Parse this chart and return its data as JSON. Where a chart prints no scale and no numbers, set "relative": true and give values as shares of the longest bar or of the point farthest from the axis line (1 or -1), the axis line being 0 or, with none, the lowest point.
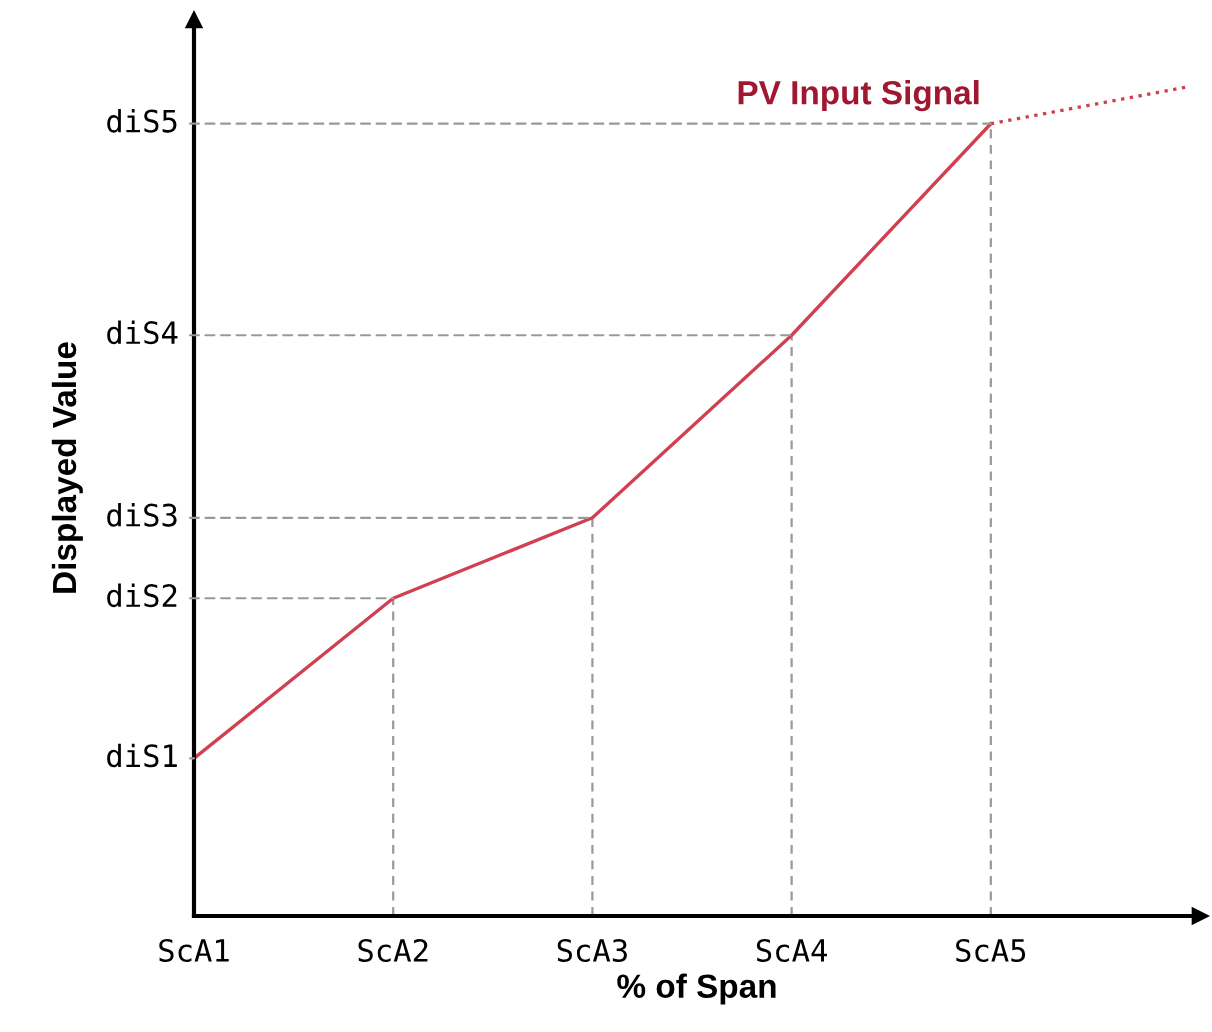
{
  "chart_data": {
    "type": "line",
    "xlabel": "% of Span",
    "ylabel": "Displayed Value",
    "relative": true,
    "categories": [
      "ScA1",
      "ScA2",
      "ScA3",
      "ScA4",
      "ScA5",
      null
    ],
    "series": [
      {
        "name": "PV Input Signal",
        "color": "#d04050",
        "values": [
          0.19,
          0.383,
          0.48,
          0.7,
          0.955,
          null
        ],
        "line_style": "solid"
      },
      {
        "color": "#d04050",
        "values": [
          null,
          null,
          null,
          null,
          0.955,
          1
        ],
        "line_style": "dotted"
      }
    ],
    "annotations": [
      {
        "text": "diS1",
        "x": "ScA1",
        "y": 0.19
      },
      {
        "text": "diS2",
        "x": "ScA2",
        "y": 0.383
      },
      {
        "text": "diS3",
        "x": "ScA3",
        "y": 0.48
      },
      {
        "text": "diS4",
        "x": "ScA4",
        "y": 0.7
      },
      {
        "text": "diS5",
        "x": "ScA5",
        "y": 0.955
      }
    ],
    "grid": "x",
    "legend": false,
    "marker": "none"
  }
}
